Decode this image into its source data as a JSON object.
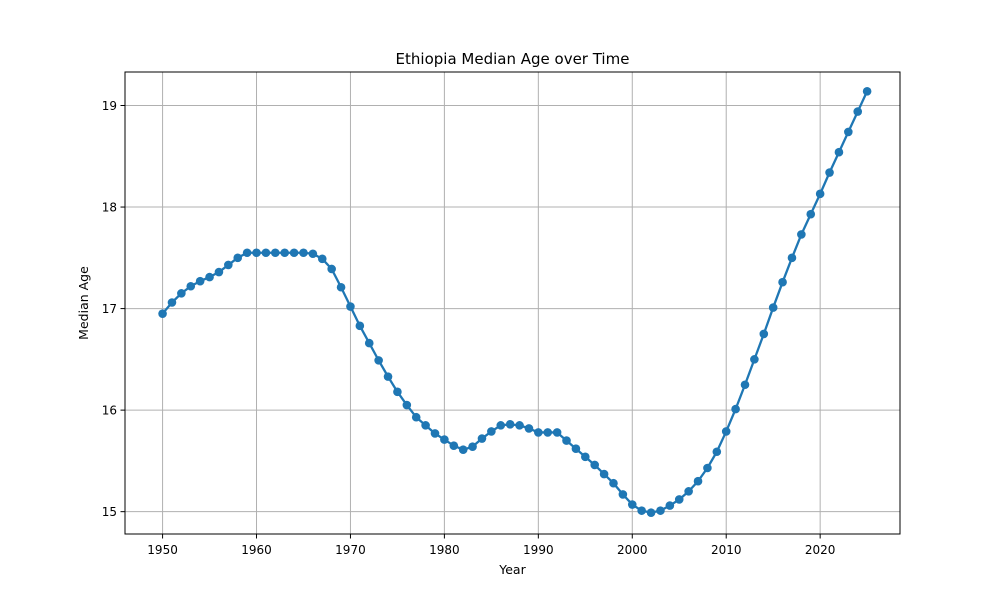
{
  "chart_data": {
    "type": "line",
    "title": "Ethiopia Median Age over Time",
    "xlabel": "Year",
    "ylabel": "Median Age",
    "xlim": [
      1946,
      2028.5
    ],
    "ylim": [
      14.78,
      19.33
    ],
    "xticks": [
      1950,
      1960,
      1970,
      1980,
      1990,
      2000,
      2010,
      2020
    ],
    "yticks": [
      15,
      16,
      17,
      18,
      19
    ],
    "grid": true,
    "color": "#1f77b4",
    "marker": "circle",
    "x": [
      1950,
      1951,
      1952,
      1953,
      1954,
      1955,
      1956,
      1957,
      1958,
      1959,
      1960,
      1961,
      1962,
      1963,
      1964,
      1965,
      1966,
      1967,
      1968,
      1969,
      1970,
      1971,
      1972,
      1973,
      1974,
      1975,
      1976,
      1977,
      1978,
      1979,
      1980,
      1981,
      1982,
      1983,
      1984,
      1985,
      1986,
      1987,
      1988,
      1989,
      1990,
      1991,
      1992,
      1993,
      1994,
      1995,
      1996,
      1997,
      1998,
      1999,
      2000,
      2001,
      2002,
      2003,
      2004,
      2005,
      2006,
      2007,
      2008,
      2009,
      2010,
      2011,
      2012,
      2013,
      2014,
      2015,
      2016,
      2017,
      2018,
      2019,
      2020,
      2021,
      2022,
      2023,
      2024,
      2025
    ],
    "y": [
      16.95,
      17.06,
      17.15,
      17.22,
      17.27,
      17.31,
      17.36,
      17.43,
      17.5,
      17.55,
      17.55,
      17.55,
      17.55,
      17.55,
      17.55,
      17.55,
      17.54,
      17.49,
      17.39,
      17.21,
      17.02,
      16.83,
      16.66,
      16.49,
      16.33,
      16.18,
      16.05,
      15.93,
      15.85,
      15.77,
      15.71,
      15.65,
      15.61,
      15.64,
      15.72,
      15.79,
      15.85,
      15.86,
      15.85,
      15.82,
      15.78,
      15.78,
      15.78,
      15.7,
      15.62,
      15.54,
      15.46,
      15.37,
      15.28,
      15.17,
      15.07,
      15.01,
      14.99,
      15.01,
      15.06,
      15.12,
      15.2,
      15.3,
      15.43,
      15.59,
      15.79,
      16.01,
      16.25,
      16.5,
      16.75,
      17.01,
      17.26,
      17.5,
      17.73,
      17.93,
      18.13,
      18.34,
      18.54,
      18.74,
      18.94,
      19.14
    ]
  }
}
